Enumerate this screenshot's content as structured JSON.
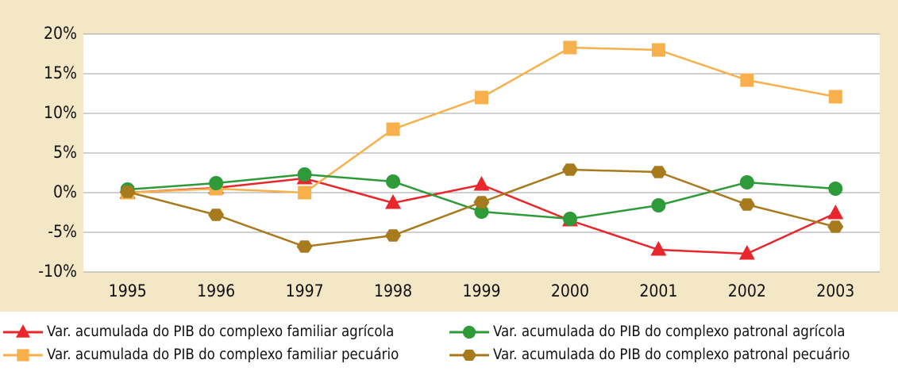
{
  "chart_data": {
    "type": "line",
    "categories": [
      "1995",
      "1996",
      "1997",
      "1998",
      "1999",
      "2000",
      "2001",
      "2002",
      "2003"
    ],
    "series": [
      {
        "name": "Var. acumulada do PIB do complexo familiar agrícola",
        "color": "#e8262b",
        "marker": "triangle",
        "values": [
          0,
          0.6,
          1.8,
          -1.3,
          1.0,
          -3.5,
          -7.2,
          -7.7,
          -2.6
        ]
      },
      {
        "name": "Var. acumulada do PIB do complexo familiar pecuário",
        "color": "#f7b04b",
        "marker": "square",
        "values": [
          0,
          0.5,
          0,
          8,
          12,
          18.3,
          18,
          14.2,
          12.1
        ]
      },
      {
        "name": "Var. acumulada do PIB do complexo patronal agrícola",
        "color": "#2e9a3a",
        "marker": "circle",
        "values": [
          0.4,
          1.2,
          2.3,
          1.4,
          -2.4,
          -3.3,
          -1.6,
          1.3,
          0.5
        ]
      },
      {
        "name": "Var. acumulada do PIB do complexo patronal pecuário",
        "color": "#a87a1e",
        "marker": "hexagon",
        "values": [
          0.1,
          -2.8,
          -6.8,
          -5.4,
          -1.2,
          2.9,
          2.6,
          -1.5,
          -4.3
        ]
      }
    ],
    "ylim": [
      -10,
      20
    ],
    "yticks": [
      {
        "value": -10,
        "label": "-10%"
      },
      {
        "value": -5,
        "label": "-5%"
      },
      {
        "value": 0,
        "label": "0%"
      },
      {
        "value": 5,
        "label": "5%"
      },
      {
        "value": 10,
        "label": "10%"
      },
      {
        "value": 15,
        "label": "15%"
      },
      {
        "value": 20,
        "label": "20%"
      }
    ],
    "grid": true,
    "legend": "bottom"
  }
}
